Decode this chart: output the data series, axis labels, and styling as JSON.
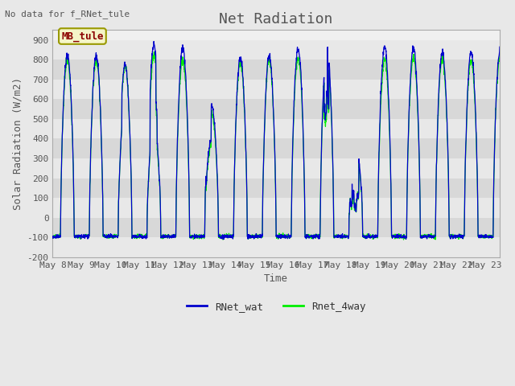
{
  "title": "Net Radiation",
  "xlabel": "Time",
  "ylabel": "Solar Radiation (W/m2)",
  "ylim": [
    -200,
    950
  ],
  "yticks": [
    -200,
    -100,
    0,
    100,
    200,
    300,
    400,
    500,
    600,
    700,
    800,
    900
  ],
  "no_data_text": "No data for f_RNet_tule",
  "legend_label1": "RNet_wat",
  "legend_label2": "Rnet_4way",
  "legend_color1": "#0000cc",
  "legend_color2": "#00ee00",
  "annotation_text": "MB_tule",
  "fig_bg_color": "#e8e8e8",
  "plot_bg_color": "#f0f0f0",
  "n_days": 16,
  "start_day": 8,
  "xtick_labels": [
    "May 8",
    "May 9",
    "May 10",
    "May 11",
    "May 12",
    "May 13",
    "May 14",
    "May 15",
    "May 16",
    "May 17",
    "May 18",
    "May 19",
    "May 20",
    "May 21",
    "May 22",
    "May 23"
  ],
  "points_per_day": 144,
  "night_value": -95,
  "title_fontsize": 13,
  "axis_fontsize": 9,
  "tick_fontsize": 8,
  "band_colors": [
    "#e8e8e8",
    "#d8d8d8"
  ]
}
